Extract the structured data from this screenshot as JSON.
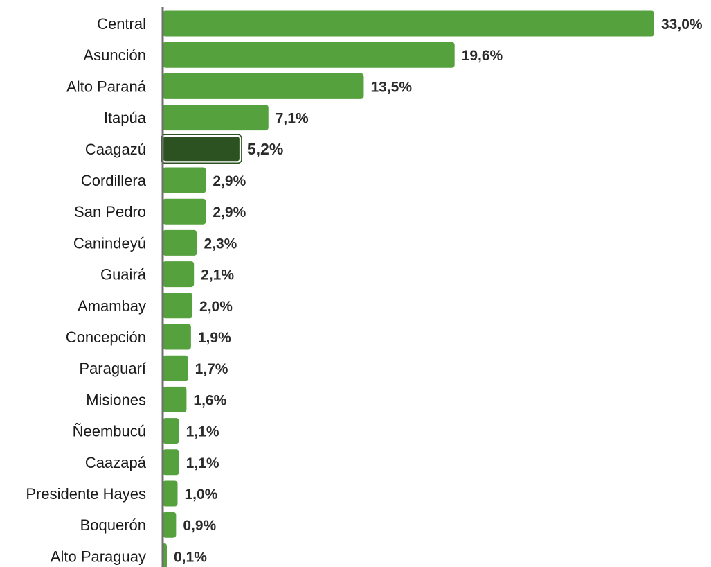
{
  "chart_data": {
    "type": "bar",
    "orientation": "horizontal",
    "categories": [
      "Central",
      "Asunción",
      "Alto Paraná",
      "Itapúa",
      "Caagazú",
      "Cordillera",
      "San Pedro",
      "Canindeyú",
      "Guairá",
      "Amambay",
      "Concepción",
      "Paraguarí",
      "Misiones",
      "Ñeembucú",
      "Caazapá",
      "Presidente Hayes",
      "Boquerón",
      "Alto Paraguay"
    ],
    "values": [
      33.0,
      19.6,
      13.5,
      7.1,
      5.2,
      2.9,
      2.9,
      2.3,
      2.1,
      2.0,
      1.9,
      1.7,
      1.6,
      1.1,
      1.1,
      1.0,
      0.9,
      0.1
    ],
    "value_labels": [
      "33,0%",
      "19,6%",
      "13,5%",
      "7,1%",
      "5,2%",
      "2,9%",
      "2,9%",
      "2,3%",
      "2,1%",
      "2,0%",
      "1,9%",
      "1,7%",
      "1,6%",
      "1,1%",
      "1,1%",
      "1,0%",
      "0,9%",
      "0,1%"
    ],
    "highlight_category": "Caagazú",
    "colors": {
      "bar": "#55a13e",
      "highlight": "#2b5220",
      "axis": "#6e6e6e"
    },
    "title": "",
    "xlabel": "",
    "ylabel": "",
    "xlim": [
      0,
      33.0
    ],
    "grid": false,
    "legend": "none"
  }
}
